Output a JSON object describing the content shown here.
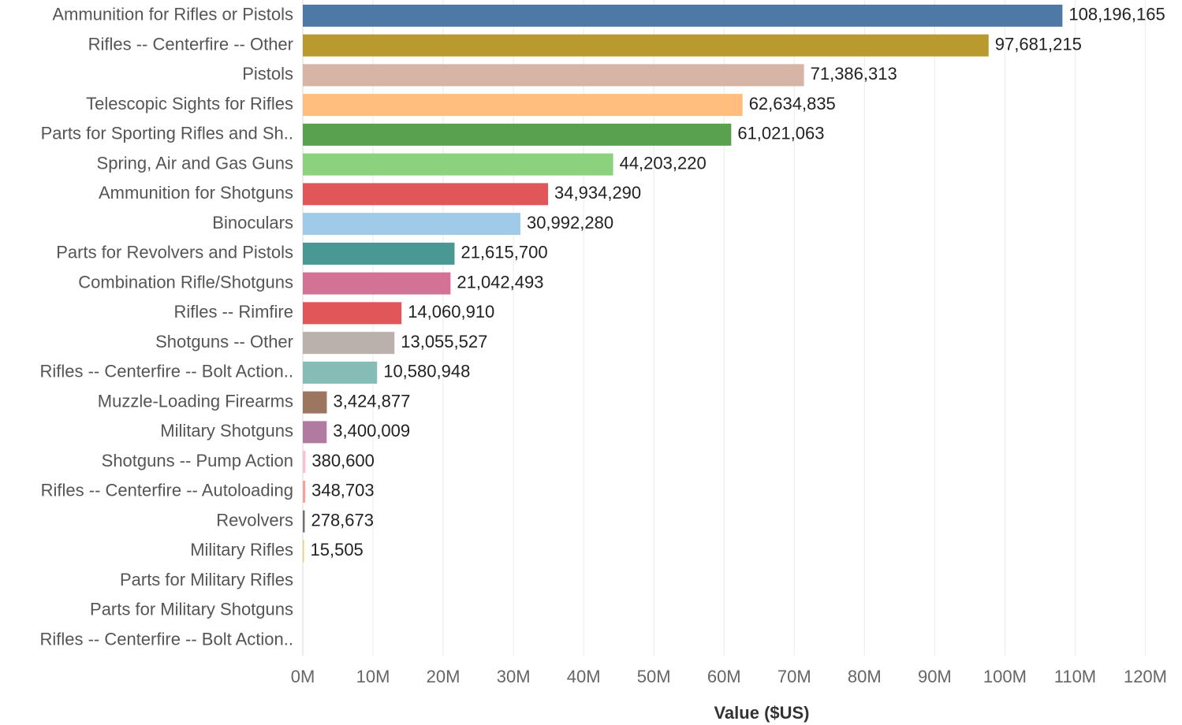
{
  "chart_data": {
    "type": "bar",
    "orientation": "horizontal",
    "categories": [
      "Ammunition for Rifles or Pistols",
      "Rifles -- Centerfire -- Other",
      "Pistols",
      "Telescopic Sights for Rifles",
      "Parts for Sporting Rifles and Sh..",
      "Spring, Air and Gas Guns",
      "Ammunition for Shotguns",
      "Binoculars",
      "Parts for Revolvers and Pistols",
      "Combination Rifle/Shotguns",
      "Rifles -- Rimfire",
      "Shotguns -- Other",
      "Rifles -- Centerfire -- Bolt Action..",
      "Muzzle-Loading Firearms",
      "Military Shotguns",
      "Shotguns -- Pump Action",
      "Rifles -- Centerfire -- Autoloading",
      "Revolvers",
      "Military Rifles",
      "Parts for Military Rifles",
      "Parts for Military Shotguns",
      "Rifles -- Centerfire -- Bolt Action.."
    ],
    "values": [
      108196165,
      97681215,
      71386313,
      62634835,
      61021063,
      44203220,
      34934290,
      30992280,
      21615700,
      21042493,
      14060910,
      13055527,
      10580948,
      3424877,
      3400009,
      380600,
      348703,
      278673,
      15505,
      null,
      null,
      null
    ],
    "value_labels": [
      "108,196,165",
      "97,681,215",
      "71,386,313",
      "62,634,835",
      "61,021,063",
      "44,203,220",
      "34,934,290",
      "30,992,280",
      "21,615,700",
      "21,042,493",
      "14,060,910",
      "13,055,527",
      "10,580,948",
      "3,424,877",
      "3,400,009",
      "380,600",
      "348,703",
      "278,673",
      "15,505",
      "",
      "",
      ""
    ],
    "colors": [
      "#4e79a7",
      "#b99a2e",
      "#d7b5a6",
      "#ffbe7d",
      "#59a14f",
      "#8cd17d",
      "#e15759",
      "#a0cbe8",
      "#499894",
      "#d37295",
      "#e15759",
      "#bab0ac",
      "#86bcb6",
      "#9d7660",
      "#b07aa1",
      "#fabfd2",
      "#ff9d9a",
      "#79706e",
      "#f1ce63",
      "#cccccc",
      "#cccccc",
      "#cccccc"
    ],
    "xlim": [
      0,
      125000000
    ],
    "xticks": [
      0,
      10000000,
      20000000,
      30000000,
      40000000,
      50000000,
      60000000,
      70000000,
      80000000,
      90000000,
      100000000,
      110000000,
      120000000
    ],
    "xtick_labels": [
      "0M",
      "10M",
      "20M",
      "30M",
      "40M",
      "50M",
      "60M",
      "70M",
      "80M",
      "90M",
      "100M",
      "110M",
      "120M"
    ],
    "xlabel": "Value ($US)",
    "ylabel": "",
    "title": "",
    "grid": true
  }
}
